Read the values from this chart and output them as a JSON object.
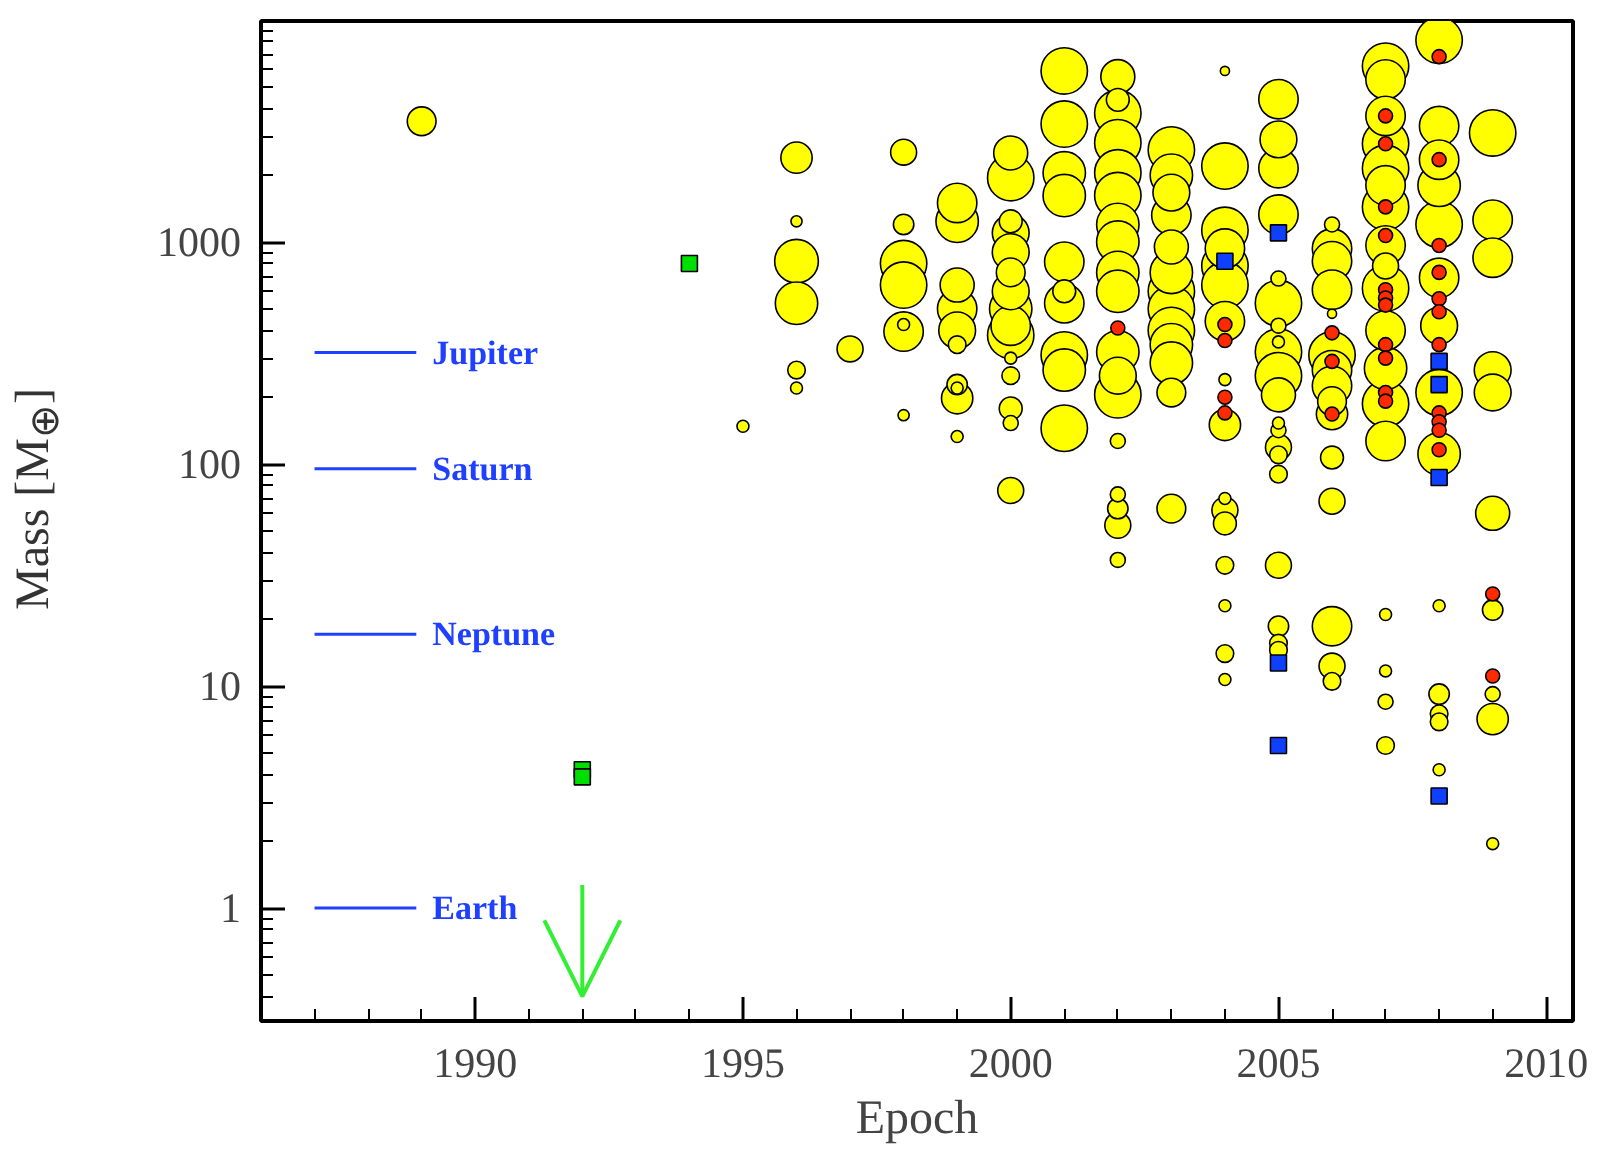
{
  "chart_data": {
    "type": "bubble",
    "xlabel": "Epoch",
    "ylabel": "Mass [M$_{⊕}$]",
    "xlim": [
      1986,
      2010.5
    ],
    "ylim": [
      0.31,
      9900
    ],
    "log": "y",
    "grid": false,
    "legend": false,
    "xticks": [
      1990,
      1995,
      2000,
      2005,
      2010
    ],
    "yticks": [
      1,
      10,
      100,
      1000
    ],
    "series": [
      {
        "type": "line",
        "name": "Jupiter",
        "color": "#2040ff",
        "x": [
          1987,
          1988.9
        ],
        "values": [
          317.8,
          317.8
        ]
      },
      {
        "type": "line",
        "name": "Saturn",
        "color": "#2040ff",
        "x": [
          1987,
          1988.9
        ],
        "values": [
          95.2,
          95.2
        ]
      },
      {
        "type": "line",
        "name": "Neptune",
        "color": "#2040ff",
        "x": [
          1987,
          1988.9
        ],
        "values": [
          17.1,
          17.1
        ]
      },
      {
        "type": "line",
        "name": "Earth",
        "color": "#2040ff",
        "x": [
          1987,
          1988.9
        ],
        "values": [
          1,
          1
        ]
      },
      {
        "color": "#ffff00",
        "x": [
          1989,
          1995,
          1996,
          1996,
          1996,
          1996,
          1996,
          1996,
          1997,
          1998,
          1998,
          1998,
          1998,
          1998,
          1998,
          1998,
          1999,
          1999,
          1999,
          1999,
          1999,
          1999,
          1999,
          1999,
          1999,
          1999,
          2000,
          2000,
          2000,
          2000,
          2000,
          2000,
          2000,
          2000,
          2000,
          2000,
          2000,
          2000,
          2000,
          2000,
          2000,
          2001,
          2001,
          2001,
          2001,
          2001,
          2001,
          2001,
          2001,
          2001,
          2001,
          2002,
          2002,
          2002,
          2002,
          2002,
          2002,
          2002,
          2002,
          2002,
          2002,
          2002,
          2002,
          2002,
          2002,
          2002,
          2002,
          2002,
          2002,
          2003,
          2003,
          2003,
          2003,
          2003,
          2003,
          2003,
          2003,
          2003,
          2003,
          2003,
          2003,
          2003,
          2004,
          2004,
          2004,
          2004,
          2004,
          2004,
          2004,
          2004,
          2004,
          2004,
          2004,
          2004,
          2004,
          2004,
          2004,
          2004,
          2005,
          2005,
          2005,
          2005,
          2005,
          2005,
          2005,
          2005,
          2005,
          2005,
          2005,
          2005,
          2005,
          2005,
          2005,
          2005,
          2005,
          2005,
          2005,
          2005,
          2006,
          2006,
          2006,
          2006,
          2006,
          2006,
          2006,
          2006,
          2006,
          2006,
          2006,
          2006,
          2006,
          2006,
          2006,
          2007,
          2007,
          2007,
          2007,
          2007,
          2007,
          2007,
          2007,
          2007,
          2007,
          2007,
          2007,
          2007,
          2007,
          2007,
          2007,
          2007,
          2007,
          2008,
          2008,
          2008,
          2008,
          2008,
          2008,
          2008,
          2008,
          2008,
          2008,
          2008,
          2008,
          2008,
          2008,
          2009,
          2009,
          2009,
          2009,
          2009,
          2009,
          2009,
          2009,
          2009,
          2009
        ],
        "values": [
          3500,
          148,
          2400,
          1240,
          820,
          530,
          265,
          220,
          330,
          2540,
          1200,
          800,
          640,
          425,
          395,
          166,
          1500,
          1240,
          640,
          500,
          400,
          345,
          228,
          198,
          220,
          133,
          2520,
          1950,
          1240,
          1100,
          900,
          730,
          600,
          500,
          420,
          380,
          300,
          250,
          178,
          153,
          76,
          5900,
          3400,
          2050,
          1620,
          815,
          600,
          530,
          310,
          265,
          145,
          5560,
          4370,
          3800,
          2800,
          2050,
          1620,
          1200,
          1000,
          730,
          600,
          320,
          250,
          205,
          127,
          73,
          63,
          53,
          37,
          2600,
          2000,
          1670,
          1320,
          950,
          730,
          600,
          500,
          400,
          345,
          285,
          210,
          63,
          5900,
          2200,
          1130,
          935,
          780,
          640,
          440,
          240,
          150,
          70,
          62,
          54,
          35,
          23,
          14,
          10.7,
          4400,
          2900,
          2150,
          1330,
          685,
          530,
          420,
          355,
          320,
          250,
          205,
          153,
          142,
          119,
          110,
          90,
          35,
          18.6,
          15.6,
          14.5,
          1200,
          935,
          820,
          610,
          475,
          310,
          265,
          225,
          192,
          168,
          107,
          68,
          18.6,
          12.3,
          10.5,
          6200,
          5400,
          3700,
          2770,
          2150,
          1800,
          1440,
          965,
          780,
          620,
          400,
          270,
          187,
          127,
          21,
          11.7,
          8.5,
          5.4,
          8100,
          3330,
          2350,
          1800,
          1200,
          690,
          420,
          210,
          111,
          23,
          9.2,
          7.5,
          6.9,
          4.2,
          3100,
          1260,
          850,
          265,
          210,
          60,
          22,
          9.2,
          7.1,
          1.95
        ],
        "sizes": [
          0.4,
          0.08,
          0.47,
          0.07,
          0.89,
          0.84,
          0.16,
          0.08,
          0.33,
          0.33,
          0.21,
          1,
          1,
          0.08,
          0.73,
          0.07,
          0.73,
          0.84,
          0.55,
          0.73,
          0.64,
          0.16,
          0.21,
          0.47,
          0.08,
          0.08,
          0.55,
          1,
          0.26,
          0.64,
          0.64,
          0.4,
          0.64,
          0.84,
          0.73,
          1,
          0.08,
          0.16,
          0.26,
          0.12,
          0.33,
          1,
          1,
          0.84,
          0.84,
          0.73,
          0.26,
          0.73,
          1,
          0.84,
          1,
          0.55,
          0.26,
          1,
          1,
          1,
          1,
          0.84,
          0.84,
          0.84,
          0.84,
          0.84,
          0.64,
          1,
          0.12,
          0.12,
          0.21,
          0.33,
          0.12,
          1,
          0.84,
          0.64,
          0.73,
          0.55,
          0.84,
          1,
          1,
          1,
          0.84,
          0.84,
          0.4,
          0.4,
          0.05,
          1,
          1,
          0.73,
          1,
          1,
          0.73,
          0.08,
          0.47,
          0.08,
          0.33,
          0.26,
          0.16,
          0.08,
          0.16,
          0.08,
          0.73,
          0.64,
          0.73,
          0.73,
          0.12,
          1,
          0.12,
          0.08,
          1,
          1,
          0.55,
          0.08,
          0.12,
          0.33,
          0.16,
          0.16,
          0.33,
          0.21,
          0.16,
          0.16,
          0.12,
          0.73,
          0.73,
          0.73,
          0.05,
          1,
          0.73,
          0.73,
          0.4,
          0.47,
          0.26,
          0.33,
          0.73,
          0.33,
          0.16,
          1,
          0.73,
          0.73,
          1,
          1,
          0.73,
          1,
          0.73,
          0.33,
          1,
          0.73,
          0.84,
          1,
          0.73,
          0.08,
          0.08,
          0.12,
          0.16,
          1,
          0.73,
          0.73,
          0.84,
          1,
          0.73,
          0.64,
          1,
          0.84,
          0.08,
          0.21,
          0.16,
          0.16,
          0.08,
          1,
          0.73,
          0.73,
          0.64,
          0.64,
          0.55,
          0.21,
          0.12,
          0.47,
          0.08
        ]
      },
      {
        "type": "scatter",
        "marker": "circle",
        "color": "#ff2a00",
        "x": [
          2002,
          2004,
          2004,
          2004,
          2004,
          2006,
          2006,
          2006,
          2007,
          2007,
          2007,
          2007,
          2007,
          2007,
          2007,
          2007,
          2007,
          2007,
          2007,
          2008,
          2008,
          2008,
          2008,
          2008,
          2008,
          2008,
          2008,
          2008,
          2008,
          2008,
          2009,
          2009
        ],
        "values": [
          410,
          425,
          360,
          200,
          170,
          390,
          290,
          168,
          3700,
          2770,
          1440,
          1070,
          610,
          560,
          520,
          345,
          300,
          210,
          192,
          6840,
          2350,
          965,
          730,
          555,
          485,
          345,
          170,
          155,
          142,
          116,
          26,
          11.1
        ]
      },
      {
        "type": "scatter",
        "marker": "square",
        "color": "#1040ff",
        "x": [
          2004,
          2005,
          2005,
          2005,
          2008,
          2008,
          2008,
          2008
        ],
        "values": [
          820,
          1100,
          12.7,
          5.4,
          290,
          228,
          87,
          3.2
        ]
      },
      {
        "type": "scatter",
        "marker": "square",
        "color": "#00dd00",
        "x": [
          1994,
          1992,
          1992
        ],
        "values": [
          800,
          4.2,
          3.9
        ]
      },
      {
        "type": "line",
        "marker": "none",
        "color": "#33ee33",
        "x": [
          1992,
          1992
        ],
        "values": [
          1.27,
          0.4
        ]
      }
    ]
  }
}
